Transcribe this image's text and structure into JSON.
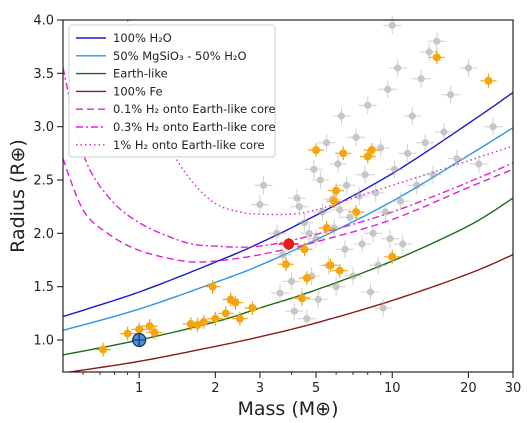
{
  "chart_data": {
    "type": "scatter",
    "title": "",
    "xlabel": "Mass (M⊕)",
    "ylabel": "Radius (R⊕)",
    "xscale": "log",
    "xlim": [
      0.5,
      30
    ],
    "ylim": [
      0.7,
      4.0
    ],
    "x_tick_labels": [
      "1",
      "2",
      "3",
      "5",
      "10",
      "20",
      "30"
    ],
    "x_ticks": [
      1,
      2,
      3,
      5,
      10,
      20,
      30
    ],
    "y_ticks": [
      1.0,
      1.5,
      2.0,
      2.5,
      3.0,
      3.5,
      4.0
    ],
    "y_tick_labels": [
      "1.0",
      "1.5",
      "2.0",
      "2.5",
      "3.0",
      "3.5",
      "4.0"
    ],
    "grid": false,
    "legend_position": "top-left",
    "curves": [
      {
        "name": "100% H₂O",
        "color": "#1a1ad0",
        "style": "solid",
        "x": [
          0.5,
          1,
          2,
          3,
          5,
          10,
          20,
          30
        ],
        "y": [
          1.22,
          1.45,
          1.73,
          1.91,
          2.17,
          2.56,
          3.03,
          3.32
        ]
      },
      {
        "name": "50% MgSiO₃ - 50% H₂O",
        "color": "#2b97e8",
        "style": "solid",
        "x": [
          0.5,
          1,
          2,
          3,
          5,
          10,
          20,
          30
        ],
        "y": [
          1.09,
          1.29,
          1.54,
          1.7,
          1.94,
          2.3,
          2.73,
          2.99
        ]
      },
      {
        "name": "Earth-like",
        "color": "#1c6b1c",
        "style": "solid",
        "x": [
          0.5,
          1,
          2,
          3,
          5,
          10,
          20,
          30
        ],
        "y": [
          0.86,
          1.0,
          1.17,
          1.3,
          1.47,
          1.74,
          2.07,
          2.33
        ]
      },
      {
        "name": "100% Fe",
        "color": "#8b1a1a",
        "style": "solid",
        "x": [
          0.5,
          1,
          2,
          3,
          5,
          10,
          20,
          30
        ],
        "y": [
          0.69,
          0.8,
          0.94,
          1.03,
          1.16,
          1.37,
          1.62,
          1.8
        ]
      },
      {
        "name": "0.1% H₂ onto Earth-like core",
        "color": "#e020d8",
        "style": "dashed",
        "x": [
          0.5,
          0.6,
          0.75,
          1,
          1.5,
          2,
          3,
          5,
          10,
          20,
          30
        ],
        "y": [
          2.7,
          2.22,
          2.0,
          1.84,
          1.74,
          1.74,
          1.8,
          1.92,
          2.13,
          2.43,
          2.6
        ]
      },
      {
        "name": "0.3% H₂ onto Earth-like core",
        "color": "#e020d8",
        "style": "dashdot",
        "x": [
          0.5,
          0.6,
          0.75,
          1,
          1.5,
          2,
          3,
          5,
          10,
          20,
          30
        ],
        "y": [
          3.55,
          2.75,
          2.35,
          2.1,
          1.92,
          1.88,
          1.88,
          1.99,
          2.2,
          2.48,
          2.66
        ]
      },
      {
        "name": "1% H₂ onto Earth-like core",
        "color": "#e020d8",
        "style": "dotted",
        "x": [
          0.9,
          1,
          1.3,
          1.6,
          2,
          2.5,
          3,
          4,
          5,
          7,
          10,
          20,
          30
        ],
        "y": [
          4.0,
          3.55,
          2.85,
          2.5,
          2.28,
          2.2,
          2.18,
          2.18,
          2.22,
          2.33,
          2.45,
          2.68,
          2.82
        ]
      }
    ],
    "series": [
      {
        "name": "",
        "color": "#9a9a9a",
        "points": [
          {
            "x": 3.0,
            "y": 2.27
          },
          {
            "x": 3.1,
            "y": 2.45
          },
          {
            "x": 3.5,
            "y": 2.0
          },
          {
            "x": 3.6,
            "y": 1.44
          },
          {
            "x": 3.7,
            "y": 1.8
          },
          {
            "x": 4.0,
            "y": 1.55
          },
          {
            "x": 4.1,
            "y": 1.27
          },
          {
            "x": 4.2,
            "y": 2.33
          },
          {
            "x": 4.3,
            "y": 2.25
          },
          {
            "x": 4.4,
            "y": 1.4
          },
          {
            "x": 4.5,
            "y": 2.1
          },
          {
            "x": 4.6,
            "y": 1.2
          },
          {
            "x": 4.7,
            "y": 2.0
          },
          {
            "x": 4.8,
            "y": 1.6
          },
          {
            "x": 4.9,
            "y": 2.6
          },
          {
            "x": 5.0,
            "y": 1.95
          },
          {
            "x": 5.1,
            "y": 1.38
          },
          {
            "x": 5.2,
            "y": 2.5
          },
          {
            "x": 5.3,
            "y": 2.2
          },
          {
            "x": 5.5,
            "y": 2.85
          },
          {
            "x": 5.6,
            "y": 1.7
          },
          {
            "x": 5.8,
            "y": 2.32
          },
          {
            "x": 5.9,
            "y": 2.05
          },
          {
            "x": 6.0,
            "y": 1.5
          },
          {
            "x": 6.1,
            "y": 2.65
          },
          {
            "x": 6.2,
            "y": 2.22
          },
          {
            "x": 6.3,
            "y": 3.1
          },
          {
            "x": 6.5,
            "y": 1.85
          },
          {
            "x": 6.6,
            "y": 2.45
          },
          {
            "x": 6.8,
            "y": 2.15
          },
          {
            "x": 7.0,
            "y": 1.6
          },
          {
            "x": 7.2,
            "y": 2.9
          },
          {
            "x": 7.4,
            "y": 2.35
          },
          {
            "x": 7.6,
            "y": 1.9
          },
          {
            "x": 7.8,
            "y": 2.55
          },
          {
            "x": 8.0,
            "y": 3.2
          },
          {
            "x": 8.2,
            "y": 1.45
          },
          {
            "x": 8.4,
            "y": 2.0
          },
          {
            "x": 8.6,
            "y": 2.38
          },
          {
            "x": 8.8,
            "y": 1.7
          },
          {
            "x": 9.0,
            "y": 2.8
          },
          {
            "x": 9.2,
            "y": 1.3
          },
          {
            "x": 9.4,
            "y": 2.2
          },
          {
            "x": 9.6,
            "y": 3.35
          },
          {
            "x": 9.8,
            "y": 1.95
          },
          {
            "x": 10.0,
            "y": 3.95
          },
          {
            "x": 10.2,
            "y": 2.6
          },
          {
            "x": 10.5,
            "y": 3.55
          },
          {
            "x": 10.8,
            "y": 2.3
          },
          {
            "x": 11.0,
            "y": 1.9
          },
          {
            "x": 11.5,
            "y": 2.75
          },
          {
            "x": 12.0,
            "y": 3.1
          },
          {
            "x": 12.5,
            "y": 2.45
          },
          {
            "x": 13.0,
            "y": 3.45
          },
          {
            "x": 13.5,
            "y": 2.85
          },
          {
            "x": 14.0,
            "y": 3.7
          },
          {
            "x": 14.5,
            "y": 2.55
          },
          {
            "x": 15.0,
            "y": 3.8
          },
          {
            "x": 16.0,
            "y": 2.95
          },
          {
            "x": 17.0,
            "y": 3.3
          },
          {
            "x": 18.0,
            "y": 2.7
          },
          {
            "x": 20.0,
            "y": 3.55
          },
          {
            "x": 22.0,
            "y": 2.65
          },
          {
            "x": 25.0,
            "y": 3.0
          }
        ]
      },
      {
        "name": "",
        "color": "#f5a50f",
        "points": [
          {
            "x": 0.72,
            "y": 0.91
          },
          {
            "x": 0.9,
            "y": 1.06
          },
          {
            "x": 1.0,
            "y": 1.1
          },
          {
            "x": 1.1,
            "y": 1.13
          },
          {
            "x": 1.15,
            "y": 1.07
          },
          {
            "x": 1.6,
            "y": 1.15
          },
          {
            "x": 1.7,
            "y": 1.14
          },
          {
            "x": 1.8,
            "y": 1.17
          },
          {
            "x": 1.95,
            "y": 1.5
          },
          {
            "x": 2.0,
            "y": 1.2
          },
          {
            "x": 2.2,
            "y": 1.25
          },
          {
            "x": 2.3,
            "y": 1.38
          },
          {
            "x": 2.4,
            "y": 1.35
          },
          {
            "x": 2.5,
            "y": 1.2
          },
          {
            "x": 2.8,
            "y": 1.3
          },
          {
            "x": 3.8,
            "y": 1.71
          },
          {
            "x": 4.4,
            "y": 1.39
          },
          {
            "x": 4.5,
            "y": 1.85
          },
          {
            "x": 4.6,
            "y": 1.58
          },
          {
            "x": 5.0,
            "y": 2.78
          },
          {
            "x": 5.5,
            "y": 2.05
          },
          {
            "x": 5.7,
            "y": 1.7
          },
          {
            "x": 5.9,
            "y": 2.3
          },
          {
            "x": 6.0,
            "y": 2.4
          },
          {
            "x": 6.2,
            "y": 1.65
          },
          {
            "x": 6.4,
            "y": 2.75
          },
          {
            "x": 7.2,
            "y": 2.2
          },
          {
            "x": 8.0,
            "y": 2.72
          },
          {
            "x": 8.3,
            "y": 2.78
          },
          {
            "x": 10.0,
            "y": 1.78
          },
          {
            "x": 15.0,
            "y": 3.65
          },
          {
            "x": 24.0,
            "y": 3.43
          }
        ]
      }
    ],
    "highlight_points": [
      {
        "name": "",
        "x": 3.9,
        "y": 1.9,
        "color": "#e81a1a"
      },
      {
        "name": "",
        "x": 1.0,
        "y": 1.0,
        "color": "#4a90e2",
        "symbol": "⊕"
      }
    ]
  }
}
